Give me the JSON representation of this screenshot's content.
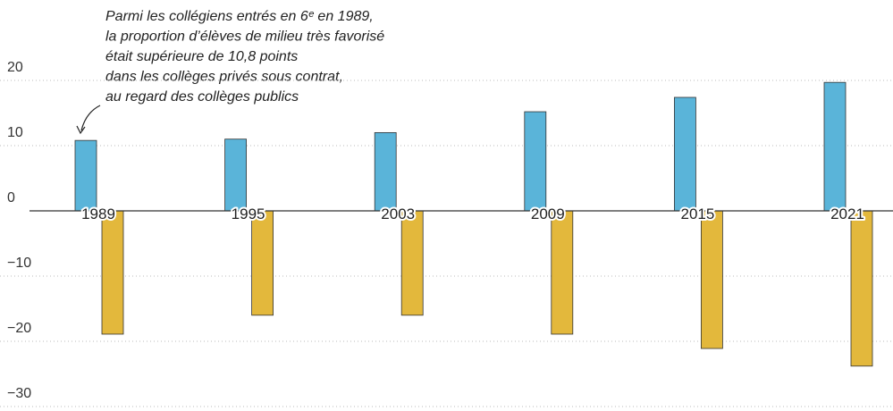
{
  "chart_data": {
    "type": "bar",
    "annotation": [
      "Parmi les collégiens entrés en 6ᵉ en 1989,",
      "la proportion d’élèves de milieu très favorisé",
      "était supérieure de 10,8 points",
      "dans les collèges privés sous contrat,",
      "au regard des collèges publics"
    ],
    "categories": [
      "1989",
      "1995",
      "2003",
      "2009",
      "2015",
      "2021"
    ],
    "series": [
      {
        "color": "#5ab4d9",
        "values": [
          10.8,
          11,
          12,
          15.2,
          17.4,
          19.7
        ]
      },
      {
        "color": "#e3b83c",
        "values": [
          -18.9,
          -16,
          -16,
          -18.9,
          -21.1,
          -23.8
        ]
      }
    ],
    "ylim": [
      -30,
      25
    ],
    "yticks": [
      20,
      10,
      0,
      {
        "value": -10,
        "label": "−10"
      },
      {
        "value": -20,
        "label": "−20"
      },
      {
        "value": -30,
        "label": "−30"
      }
    ],
    "grid": true
  }
}
